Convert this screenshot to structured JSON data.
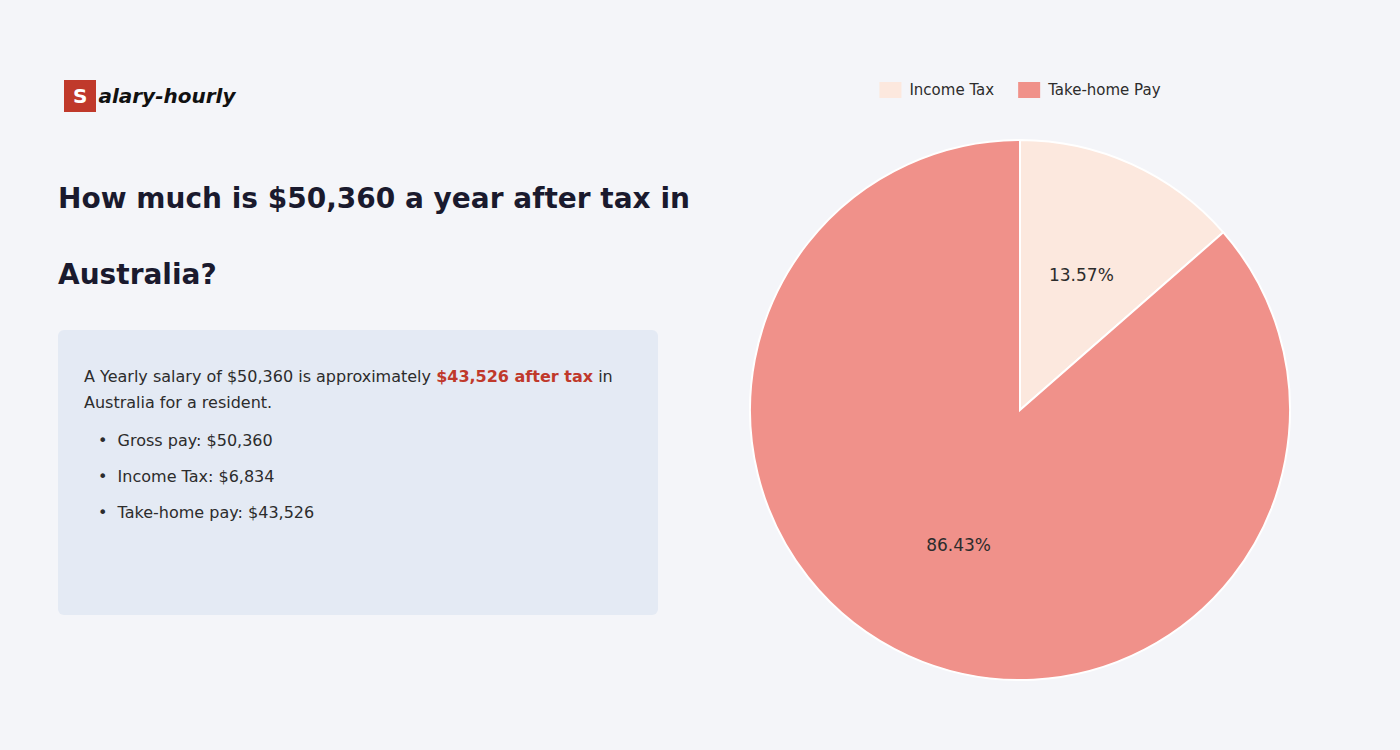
{
  "chart_data": {
    "type": "pie",
    "title": [
      "How much is $50,360 a year after tax in",
      "Australia?"
    ],
    "annotations": [
      "S",
      "alary-hourly",
      "A Yearly salary of $50,360 is approximately ",
      "$43,526 after tax",
      " in",
      "Australia for a resident.",
      "•  Gross pay: $50,360",
      "•  Income Tax: $6,834",
      "•  Take-home pay: $43,526"
    ],
    "categories": [
      "Income Tax",
      "Take-home Pay"
    ],
    "values": [
      13.57,
      86.43
    ],
    "value_labels": [
      "13.57%",
      "86.43%"
    ],
    "colors": [
      "#fce8de",
      "#f0918a"
    ],
    "data_labels": true,
    "legend": "top"
  }
}
